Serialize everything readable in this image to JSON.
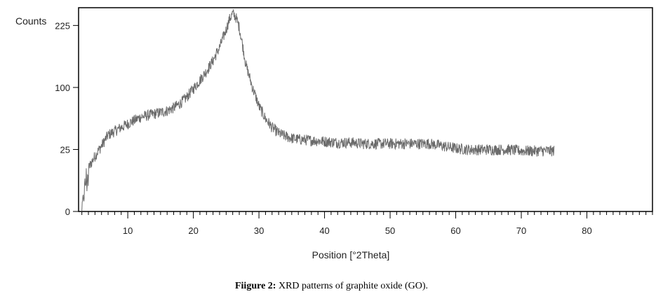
{
  "chart_data": {
    "type": "line",
    "title": "",
    "xlabel": "Position [°2Theta]",
    "ylabel": "Counts",
    "xlim": [
      2.5,
      90
    ],
    "ylim": [
      0,
      270
    ],
    "y_scale": "sqrt",
    "x_ticks": [
      10,
      20,
      30,
      40,
      50,
      60,
      70,
      80
    ],
    "y_ticks": [
      0,
      25,
      100,
      225
    ],
    "grid": false,
    "legend": "none",
    "line_color": "#6b6b6b",
    "series": [
      {
        "x": [
          3.0,
          3.3,
          3.6,
          4.0,
          4.5,
          5.0,
          5.5,
          6.0,
          6.5,
          7.0,
          8.0,
          9.0,
          10.0,
          11.0,
          12.0,
          13.0,
          14.0,
          15.0,
          16.0,
          17.0,
          18.0,
          19.0,
          20.0,
          21.0,
          22.0,
          23.0,
          24.0,
          25.0,
          25.5,
          26.0,
          26.5,
          27.0,
          27.5,
          28.0,
          29.0,
          30.0,
          31.0,
          32.0,
          33.0,
          34.0,
          35.0,
          36.0,
          38.0,
          40.0,
          42.0,
          44.0,
          46.0,
          48.0,
          50.0,
          52.0,
          54.0,
          56.0,
          58.0,
          60.0,
          62.0,
          64.0,
          66.0,
          68.0,
          70.0,
          72.0,
          74.0,
          75.0
        ],
        "y": [
          0,
          2,
          8,
          12,
          16,
          20,
          24,
          28,
          33,
          38,
          42,
          46,
          50,
          54,
          58,
          60,
          62,
          64,
          66,
          70,
          76,
          85,
          98,
          112,
          128,
          148,
          175,
          215,
          240,
          255,
          245,
          220,
          180,
          140,
          100,
          72,
          56,
          46,
          40,
          37,
          35,
          34,
          33,
          32,
          31,
          31,
          30,
          30,
          30,
          30,
          30,
          30,
          28,
          26,
          25,
          25,
          25,
          25,
          24,
          24,
          24,
          24
        ]
      }
    ]
  },
  "caption": {
    "label": "Fiigure 2:",
    "text": " XRD patterns of graphite oxide (GO)."
  }
}
